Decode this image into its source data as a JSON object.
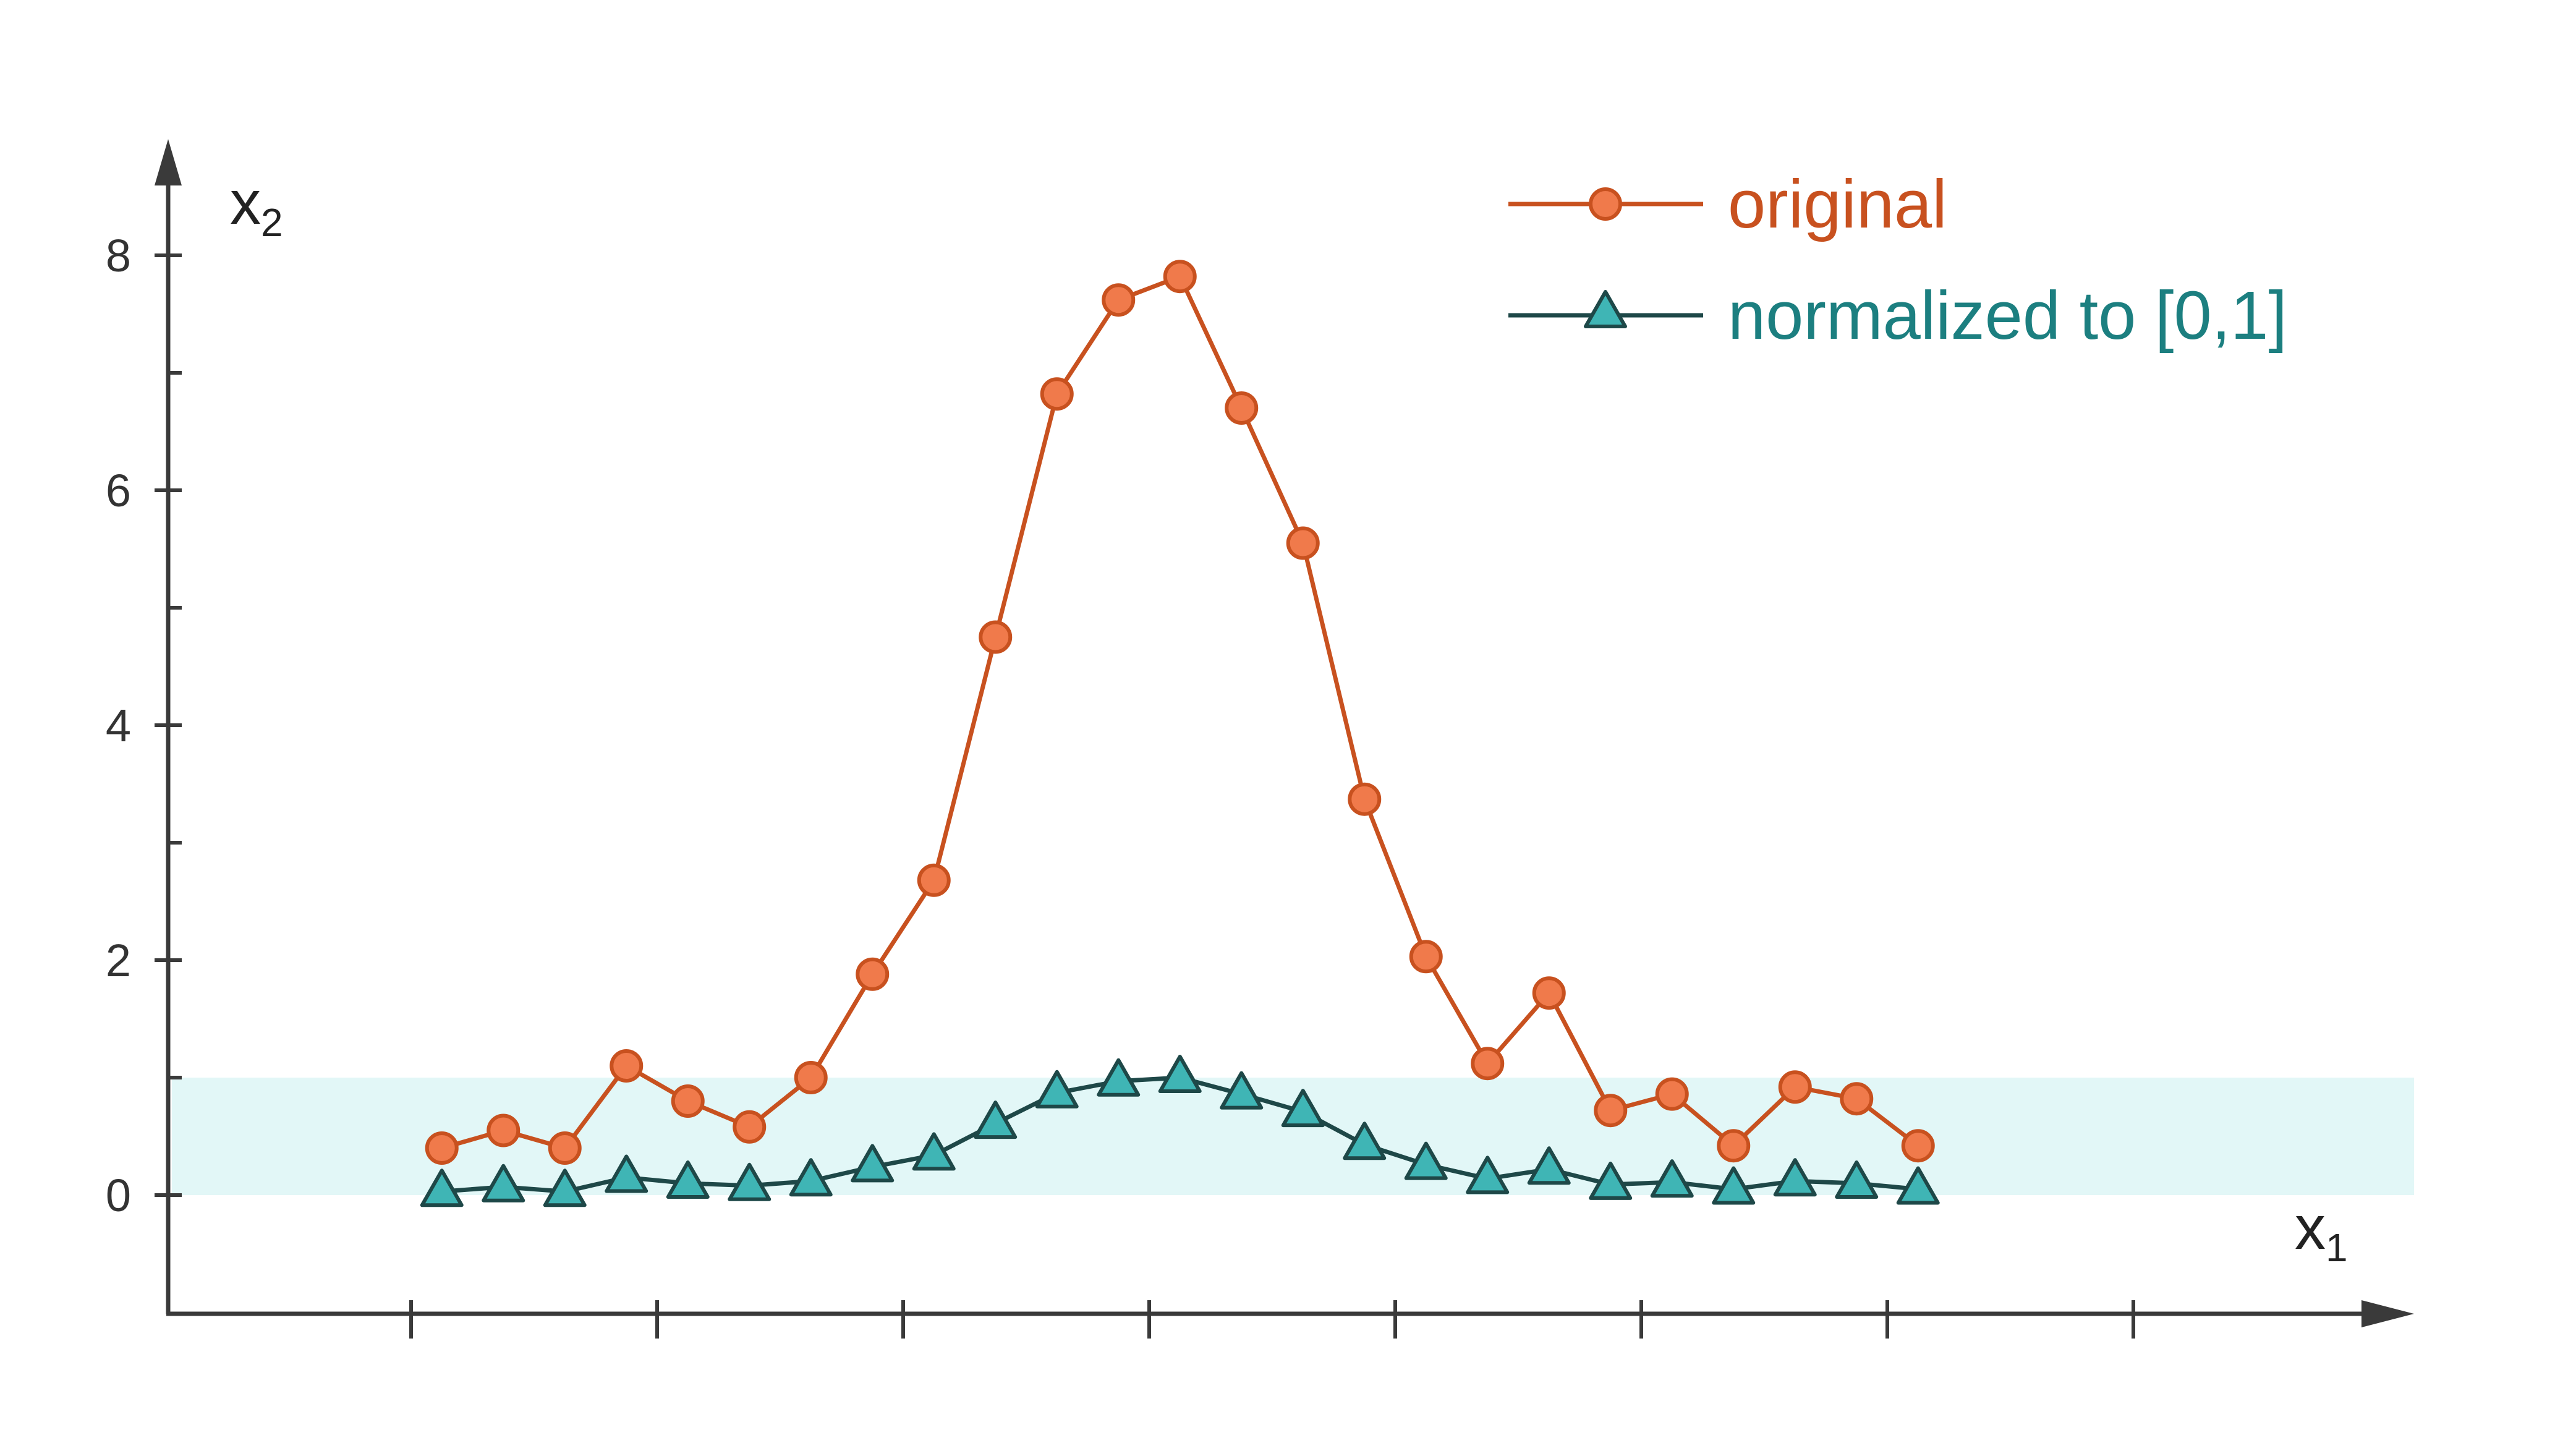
{
  "chart_data": {
    "type": "line",
    "xlabel": "x",
    "xlabel_sub": "1",
    "ylabel": "x",
    "ylabel_sub": "2",
    "ylim": [
      -1,
      9
    ],
    "y_ticks": [
      0,
      2,
      4,
      6,
      8
    ],
    "y_tick_labels": [
      "0",
      "2",
      "4",
      "6",
      "8"
    ],
    "y_minor_ticks": [
      1,
      3,
      5,
      7
    ],
    "x_ticks": [
      1,
      5,
      9,
      13,
      17,
      21,
      25,
      29
    ],
    "x_axis_range": [
      -3,
      33
    ],
    "grid": false,
    "legend": "top-right",
    "band": {
      "y0": 0,
      "y1": 1,
      "color": "#e2f7f7"
    },
    "x": [
      1.5,
      2.5,
      3.5,
      4.5,
      5.5,
      6.5,
      7.5,
      8.5,
      9.5,
      10.5,
      11.5,
      12.5,
      13.5,
      14.5,
      15.5,
      16.5,
      17.5,
      18.5,
      19.5,
      20.5,
      21.5,
      22.5,
      23.5,
      24.5,
      25.5,
      26.5
    ],
    "series": [
      {
        "name": "original",
        "color": "#c8511f",
        "marker_fill": "#f07a4b",
        "marker": "circle",
        "values": [
          0.4,
          0.55,
          0.4,
          1.1,
          0.8,
          0.58,
          1.0,
          1.88,
          2.68,
          4.75,
          6.82,
          7.62,
          7.82,
          6.7,
          5.55,
          3.37,
          2.03,
          1.12,
          1.72,
          0.72,
          0.86,
          0.42,
          0.92,
          0.82,
          0.42,
          null
        ]
      },
      {
        "name": "normalized to [0,1]",
        "color": "#1e4848",
        "label_color": "#1c7f80",
        "marker_fill": "#3fb5b5",
        "marker": "triangle",
        "values": [
          0.03,
          0.07,
          0.03,
          0.15,
          0.1,
          0.08,
          0.12,
          0.24,
          0.34,
          0.61,
          0.87,
          0.97,
          1.0,
          0.86,
          0.71,
          0.43,
          0.26,
          0.14,
          0.22,
          0.09,
          0.11,
          0.05,
          0.12,
          0.1,
          0.05,
          null
        ]
      }
    ]
  }
}
